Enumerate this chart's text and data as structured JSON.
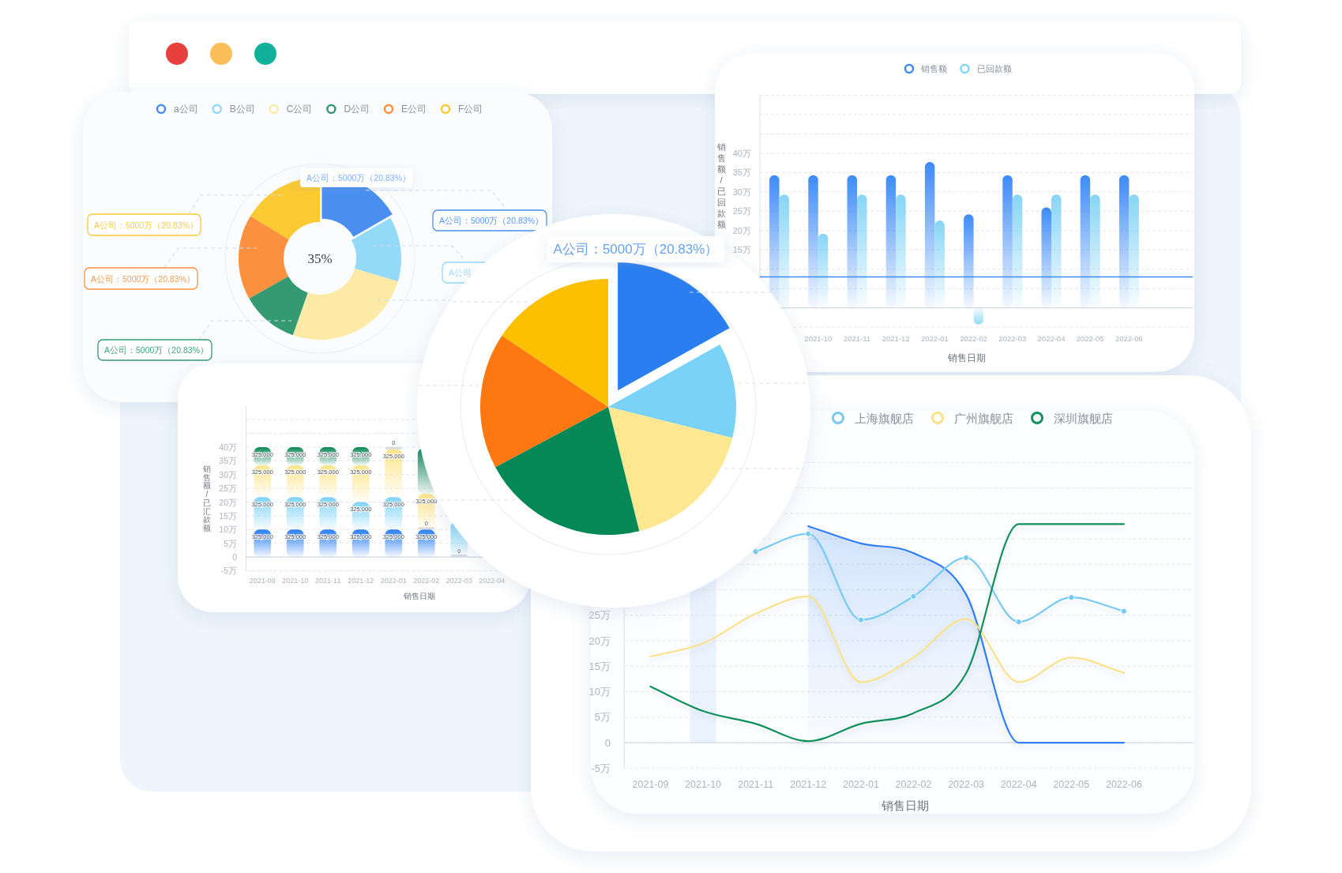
{
  "chart_data": [
    {
      "type": "donut",
      "categories": [
        "a公司",
        "B公司",
        "C公司",
        "D公司",
        "E公司",
        "F公司"
      ],
      "values": [
        16.7,
        12.9,
        25.8,
        11.4,
        16.9,
        16.3
      ],
      "colors": [
        "#4a8ff0",
        "#93d9f8",
        "#fdeaa6",
        "#339a72",
        "#fb913f",
        "#fbc932"
      ],
      "legend": "top",
      "annotations": [
        "35%",
        "A公司：5000万（20.83%）",
        "A公司：5000万（20.83%）",
        "A公司：5000万（20.83%）",
        "A公司：5000万（20.83%）",
        "A公司：5000万（20.83%）",
        "A公司"
      ]
    },
    {
      "type": "bar",
      "categories": [
        null,
        "2021-10",
        "2021-11",
        "2021-12",
        "2022-01",
        "2022-02",
        "2022-03",
        "2022-04",
        "2022-05",
        "2022-06"
      ],
      "series": [
        {
          "name": "销售额",
          "color": "#3d8bf7",
          "values": [
            34.3,
            34.3,
            34.3,
            34.3,
            37.7,
            24.2,
            34.3,
            26,
            34.3,
            34.3
          ]
        },
        {
          "name": "已回款额",
          "color": "#86d5f6",
          "values": [
            29.3,
            19.2,
            29.3,
            29.3,
            22.6,
            -4.3,
            29.3,
            29.3,
            29.3,
            29.3
          ]
        }
      ],
      "ylim": [
        -5,
        55
      ],
      "yticks": [
        {
          "value": -5,
          "label": null
        },
        {
          "value": 0,
          "label": null
        },
        {
          "value": 5,
          "label": null
        },
        {
          "value": 10,
          "label": null
        },
        {
          "value": 15,
          "label": "15万"
        },
        {
          "value": 20,
          "label": "20万"
        },
        {
          "value": 25,
          "label": "25万"
        },
        {
          "value": 30,
          "label": "30万"
        },
        {
          "value": 35,
          "label": "35万"
        },
        {
          "value": 40,
          "label": "40万"
        },
        {
          "value": 45,
          "label": null
        },
        {
          "value": 50,
          "label": null
        },
        {
          "value": 55,
          "label": null
        }
      ],
      "grid": "y",
      "legend": "top",
      "xlabel": "销售日期",
      "ylabel": "销售额/已回款额",
      "ref_lines": [
        {
          "axis": "y",
          "value": 8,
          "color": "#3d8bf7"
        }
      ]
    },
    {
      "type": "pie",
      "categories": [
        null,
        null,
        null,
        null,
        null,
        null
      ],
      "values": [
        16.9,
        12.0,
        17.2,
        21.1,
        17.2,
        15.6
      ],
      "colors": [
        "#2a7ef0",
        "#7ad3f7",
        "#fde891",
        "#048855",
        "#fd7811",
        "#fdc000"
      ],
      "annotations": [
        "A公司：5000万（20.83%）"
      ]
    },
    {
      "type": "bar",
      "stacked": true,
      "categories": [
        "2021-09",
        "2021-10",
        "2021-11",
        "2021-12",
        "2022-01",
        "2022-02",
        "2022-03",
        "2022-04"
      ],
      "series": [
        {
          "color": "#2a7ff3",
          "values": [
            10,
            10,
            10,
            10,
            10,
            10,
            0,
            null
          ]
        },
        {
          "color": "#7fd3f7",
          "values": [
            11.8,
            11.8,
            11.8,
            10,
            11.8,
            0,
            12.9,
            null
          ]
        },
        {
          "color": "#fde58c",
          "values": [
            11.6,
            11.6,
            11.6,
            13.4,
            17.4,
            13,
            null,
            null
          ]
        },
        {
          "color": "#0a8753",
          "values": [
            6.6,
            6.6,
            6.6,
            6.6,
            0,
            16.6,
            null,
            null
          ]
        }
      ],
      "ylim": [
        -5,
        55
      ],
      "yticks": [
        {
          "value": -5,
          "label": "-5万"
        },
        0,
        {
          "value": 5,
          "label": "5万"
        },
        {
          "value": 10,
          "label": "10万"
        },
        {
          "value": 15,
          "label": "15万"
        },
        {
          "value": 20,
          "label": "20万"
        },
        {
          "value": 25,
          "label": "25万"
        },
        {
          "value": 30,
          "label": "30万"
        },
        {
          "value": 35,
          "label": "35万"
        },
        {
          "value": 40,
          "label": "40万"
        },
        {
          "value": 45,
          "label": null
        },
        {
          "value": 50,
          "label": null
        }
      ],
      "grid": "y",
      "xlabel": "销售日期",
      "ylabel": "销售额/已汇款额",
      "annotations": [
        "325,000",
        "325,000",
        "325,000",
        "325,000",
        "325,000",
        "325,000",
        "325,000",
        "325,000",
        "325,000",
        "325,000",
        "325,000",
        "325,000",
        "325,000",
        "325,000",
        "325,000",
        "325,000",
        "325,000",
        "325,000",
        "325,000",
        "325,000",
        "325,000",
        "0",
        "0",
        "0"
      ]
    },
    {
      "type": "line",
      "categories": [
        "2021-09",
        "2021-10",
        "2021-11",
        "2021-12",
        "2022-01",
        "2022-02",
        "2022-03",
        "2022-04",
        "2022-05",
        "2022-06"
      ],
      "series": [
        {
          "type": "area",
          "color": "#2d7ff5",
          "values": [
            null,
            null,
            null,
            42.5,
            39.1,
            37.2,
            29.1,
            0,
            0,
            0
          ]
        },
        {
          "name": "上海旗舰店",
          "color": "#74cbf3",
          "marker": "circle",
          "values": [
            null,
            null,
            37.5,
            41.0,
            24.1,
            28.7,
            36.3,
            23.7,
            28.5,
            25.8
          ]
        },
        {
          "name": "广州旗舰店",
          "color": "#fbe18a",
          "values": [
            16.9,
            19.5,
            25.3,
            28.7,
            11.9,
            16.7,
            24.3,
            11.9,
            16.7,
            13.7
          ]
        },
        {
          "name": "深圳旗舰店",
          "color": "#11915b",
          "values": [
            11.0,
            6.2,
            3.7,
            0.3,
            3.7,
            5.8,
            13.6,
            42.9,
            42.9,
            42.9
          ]
        }
      ],
      "ylim": [
        -5,
        55
      ],
      "yticks": [
        {
          "value": -5,
          "label": "-5万"
        },
        0,
        {
          "value": 5,
          "label": "5万"
        },
        {
          "value": 10,
          "label": "10万"
        },
        {
          "value": 15,
          "label": "15万"
        },
        {
          "value": 20,
          "label": "20万"
        },
        {
          "value": 25,
          "label": "25万"
        },
        {
          "value": 30,
          "label": null
        },
        {
          "value": 35,
          "label": null
        },
        {
          "value": 40,
          "label": null
        },
        {
          "value": 45,
          "label": null
        },
        {
          "value": 50,
          "label": null
        },
        {
          "value": 55,
          "label": null
        }
      ],
      "grid": "y",
      "legend": "top",
      "xlabel": "销售日期",
      "bands": [
        {
          "axis": "x",
          "from": "2021-10",
          "to": "2021-10",
          "color": "#eaf2fd"
        }
      ]
    }
  ]
}
